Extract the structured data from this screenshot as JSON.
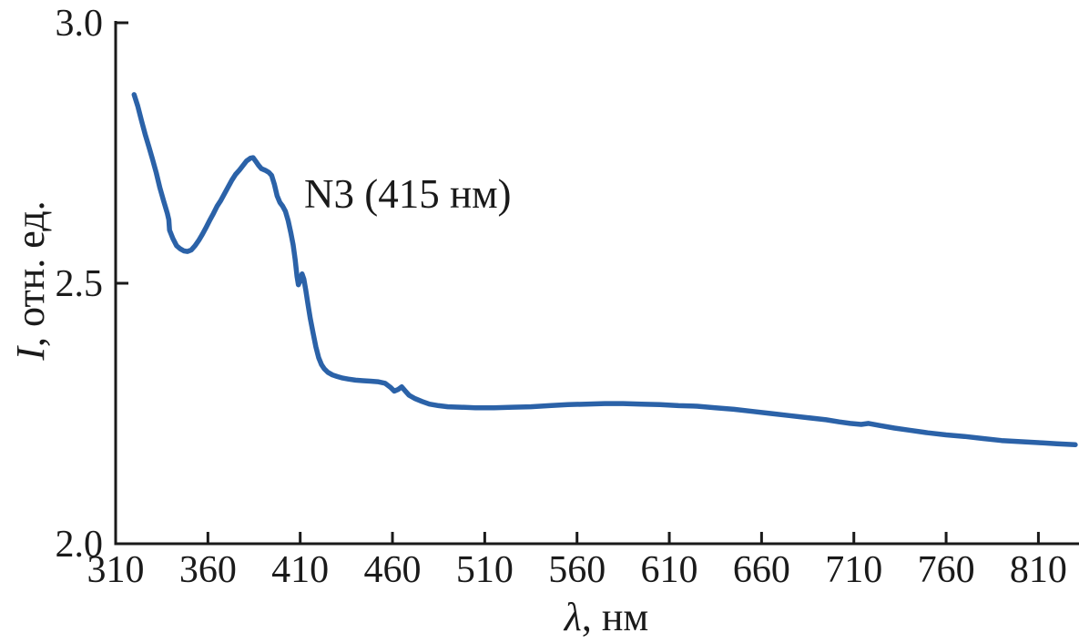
{
  "figure": {
    "annotation": "N3 (415 нм)",
    "y_label_italic": "I",
    "y_label_rest": ", отн. ед.",
    "x_label_italic": "λ",
    "x_label_rest": ", нм"
  },
  "chart_data": {
    "type": "line",
    "title": "",
    "xlabel": "λ, нм",
    "ylabel": "I, отн. ед.",
    "xlim": [
      310,
      832
    ],
    "ylim": [
      2.0,
      3.0
    ],
    "x_ticks": [
      {
        "value": 310,
        "label": "310"
      },
      {
        "value": 360,
        "label": "360"
      },
      {
        "value": 410,
        "label": "410"
      },
      {
        "value": 460,
        "label": "460"
      },
      {
        "value": 510,
        "label": "510"
      },
      {
        "value": 560,
        "label": "560"
      },
      {
        "value": 610,
        "label": "610"
      },
      {
        "value": 660,
        "label": "660"
      },
      {
        "value": 710,
        "label": "710"
      },
      {
        "value": 760,
        "label": "760"
      },
      {
        "value": 810,
        "label": "810"
      }
    ],
    "y_ticks": [
      {
        "value": 2.0,
        "label": "2.0"
      },
      {
        "value": 2.5,
        "label": "2.5"
      },
      {
        "value": 3.0,
        "label": "3.0"
      }
    ],
    "grid": false,
    "legend": "none",
    "line_color": "#2b62a8",
    "axis_color": "#1a1a1a",
    "annotation": {
      "text": "N3 (415 нм)",
      "peak_nm": 415
    },
    "series": [
      {
        "name": "N3",
        "points": [
          [
            320,
            2.862
          ],
          [
            322,
            2.84
          ],
          [
            324,
            2.812
          ],
          [
            326,
            2.786
          ],
          [
            328,
            2.762
          ],
          [
            330,
            2.738
          ],
          [
            332,
            2.712
          ],
          [
            334,
            2.683
          ],
          [
            336,
            2.658
          ],
          [
            338,
            2.634
          ],
          [
            338.8,
            2.622
          ],
          [
            339.2,
            2.602
          ],
          [
            341,
            2.586
          ],
          [
            343,
            2.572
          ],
          [
            345,
            2.566
          ],
          [
            347,
            2.562
          ],
          [
            349,
            2.561
          ],
          [
            351,
            2.564
          ],
          [
            353,
            2.572
          ],
          [
            355,
            2.582
          ],
          [
            357,
            2.594
          ],
          [
            359,
            2.607
          ],
          [
            361,
            2.621
          ],
          [
            363,
            2.634
          ],
          [
            365,
            2.648
          ],
          [
            367,
            2.659
          ],
          [
            369,
            2.672
          ],
          [
            371,
            2.685
          ],
          [
            373,
            2.698
          ],
          [
            375,
            2.709
          ],
          [
            377,
            2.717
          ],
          [
            379,
            2.726
          ],
          [
            381,
            2.735
          ],
          [
            383,
            2.74
          ],
          [
            384.5,
            2.741
          ],
          [
            386,
            2.734
          ],
          [
            387.5,
            2.726
          ],
          [
            389,
            2.72
          ],
          [
            391,
            2.717
          ],
          [
            393,
            2.713
          ],
          [
            394.5,
            2.707
          ],
          [
            396,
            2.69
          ],
          [
            397.5,
            2.668
          ],
          [
            399,
            2.655
          ],
          [
            400.5,
            2.648
          ],
          [
            402,
            2.638
          ],
          [
            403.5,
            2.62
          ],
          [
            405,
            2.596
          ],
          [
            406.2,
            2.573
          ],
          [
            407.3,
            2.545
          ],
          [
            408.3,
            2.513
          ],
          [
            409,
            2.497
          ],
          [
            410,
            2.505
          ],
          [
            411,
            2.518
          ],
          [
            412,
            2.508
          ],
          [
            413,
            2.487
          ],
          [
            414.2,
            2.46
          ],
          [
            415.5,
            2.432
          ],
          [
            417,
            2.404
          ],
          [
            418.5,
            2.378
          ],
          [
            420,
            2.357
          ],
          [
            421.5,
            2.344
          ],
          [
            423,
            2.336
          ],
          [
            425,
            2.329
          ],
          [
            427.5,
            2.324
          ],
          [
            430,
            2.321
          ],
          [
            433,
            2.318
          ],
          [
            436,
            2.316
          ],
          [
            440,
            2.314
          ],
          [
            444,
            2.313
          ],
          [
            448,
            2.312
          ],
          [
            452,
            2.311
          ],
          [
            456,
            2.308
          ],
          [
            459,
            2.3
          ],
          [
            461,
            2.293
          ],
          [
            463,
            2.296
          ],
          [
            465,
            2.301
          ],
          [
            467,
            2.293
          ],
          [
            469,
            2.285
          ],
          [
            472,
            2.279
          ],
          [
            476,
            2.273
          ],
          [
            480,
            2.268
          ],
          [
            485,
            2.265
          ],
          [
            490,
            2.263
          ],
          [
            497,
            2.262
          ],
          [
            505,
            2.261
          ],
          [
            515,
            2.261
          ],
          [
            525,
            2.262
          ],
          [
            535,
            2.263
          ],
          [
            545,
            2.265
          ],
          [
            555,
            2.267
          ],
          [
            565,
            2.268
          ],
          [
            575,
            2.269
          ],
          [
            585,
            2.269
          ],
          [
            595,
            2.268
          ],
          [
            605,
            2.267
          ],
          [
            615,
            2.265
          ],
          [
            625,
            2.264
          ],
          [
            635,
            2.261
          ],
          [
            645,
            2.258
          ],
          [
            655,
            2.254
          ],
          [
            665,
            2.25
          ],
          [
            675,
            2.246
          ],
          [
            685,
            2.242
          ],
          [
            695,
            2.238
          ],
          [
            702,
            2.234
          ],
          [
            708,
            2.231
          ],
          [
            714,
            2.229
          ],
          [
            718,
            2.231
          ],
          [
            724,
            2.227
          ],
          [
            732,
            2.222
          ],
          [
            740,
            2.218
          ],
          [
            750,
            2.213
          ],
          [
            760,
            2.209
          ],
          [
            770,
            2.206
          ],
          [
            780,
            2.202
          ],
          [
            790,
            2.198
          ],
          [
            800,
            2.196
          ],
          [
            810,
            2.194
          ],
          [
            820,
            2.192
          ],
          [
            830,
            2.19
          ]
        ]
      }
    ]
  }
}
